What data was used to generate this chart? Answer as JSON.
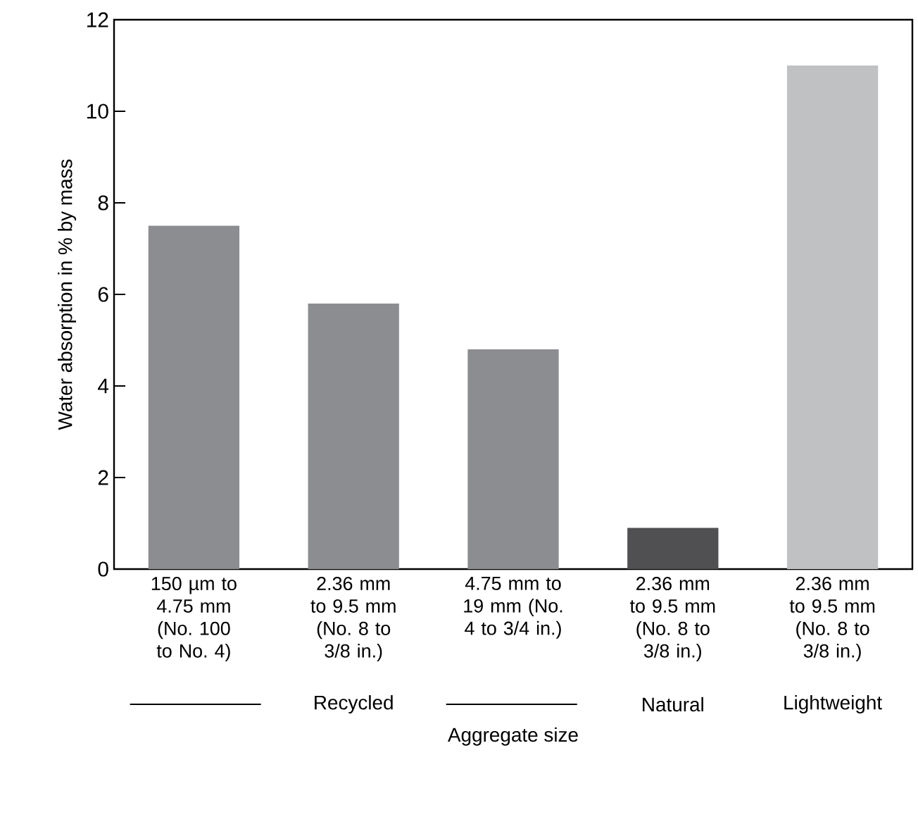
{
  "chart_data": {
    "type": "bar",
    "categories": [
      "150 µm to 4.75 mm (No. 100 to No. 4)",
      "2.36 mm to 9.5 mm (No. 8 to 3/8 in.)",
      "4.75 mm to 19 mm (No. 4 to 3/4 in.)",
      "2.36 mm to 9.5 mm (No. 8 to 3/8 in.)",
      "2.36 mm to 9.5 mm (No. 8 to 3/8 in.)"
    ],
    "values": [
      7.5,
      5.8,
      4.8,
      0.9,
      11.0
    ],
    "colors": [
      "#8c8d90",
      "#8c8d90",
      "#8c8d90",
      "#505052",
      "#c0c1c3"
    ],
    "ylim": [
      0,
      12
    ],
    "yticks": [
      0,
      2,
      4,
      6,
      8,
      10,
      12
    ],
    "xlabel": "Aggregate size",
    "ylabel": "Water absorption in % by mass",
    "annotations": [
      "Recycled",
      "Natural",
      "Lightweight"
    ]
  }
}
